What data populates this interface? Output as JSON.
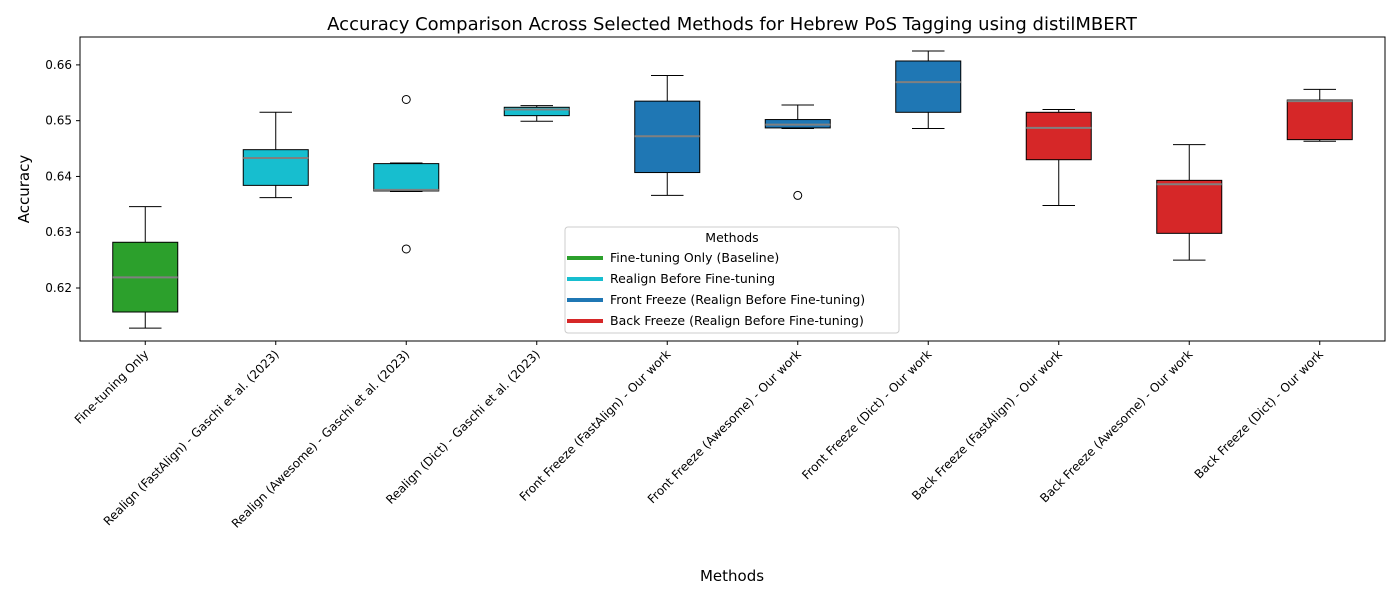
{
  "chart_data": {
    "type": "box",
    "title": "Accuracy Comparison Across Selected Methods for Hebrew PoS Tagging using distilMBERT",
    "xlabel": "Methods",
    "ylabel": "Accuracy",
    "ylim": [
      0.6105,
      0.665
    ],
    "yticks": [
      0.62,
      0.63,
      0.64,
      0.65,
      0.66
    ],
    "ytick_labels": [
      "0.62",
      "0.63",
      "0.64",
      "0.65",
      "0.66"
    ],
    "grid": false,
    "median_color": "#808080",
    "categories": [
      "Fine-tuning Only",
      "Realign (FastAlign) - Gaschi et al. (2023)",
      "Realign (Awesome) - Gaschi et al. (2023)",
      "Realign (Dict) - Gaschi et al. (2023)",
      "Front Freeze (FastAlign) - Our work",
      "Front Freeze (Awesome) - Our work",
      "Front Freeze (Dict) - Our work",
      "Back Freeze (FastAlign) - Our work",
      "Back Freeze (Awesome) - Our work",
      "Back Freeze (Dict) - Our work"
    ],
    "boxes": [
      {
        "group": 0,
        "whisker_low": 0.6128,
        "q1": 0.6157,
        "median": 0.6219,
        "q3": 0.6282,
        "whisker_high": 0.6346,
        "outliers": []
      },
      {
        "group": 1,
        "whisker_low": 0.6362,
        "q1": 0.6384,
        "median": 0.6433,
        "q3": 0.6448,
        "whisker_high": 0.6515,
        "outliers": []
      },
      {
        "group": 1,
        "whisker_low": 0.6373,
        "q1": 0.6374,
        "median": 0.6376,
        "q3": 0.6423,
        "whisker_high": 0.6424,
        "outliers": [
          0.6538,
          0.627
        ]
      },
      {
        "group": 1,
        "whisker_low": 0.6499,
        "q1": 0.6509,
        "median": 0.652,
        "q3": 0.6524,
        "whisker_high": 0.6527,
        "outliers": []
      },
      {
        "group": 2,
        "whisker_low": 0.6366,
        "q1": 0.6407,
        "median": 0.6472,
        "q3": 0.6535,
        "whisker_high": 0.6581,
        "outliers": []
      },
      {
        "group": 2,
        "whisker_low": 0.6486,
        "q1": 0.6487,
        "median": 0.6493,
        "q3": 0.6502,
        "whisker_high": 0.6528,
        "outliers": [
          0.6366
        ]
      },
      {
        "group": 2,
        "whisker_low": 0.6486,
        "q1": 0.6515,
        "median": 0.6569,
        "q3": 0.6607,
        "whisker_high": 0.6625,
        "outliers": []
      },
      {
        "group": 3,
        "whisker_low": 0.6348,
        "q1": 0.643,
        "median": 0.6487,
        "q3": 0.6515,
        "whisker_high": 0.652,
        "outliers": []
      },
      {
        "group": 3,
        "whisker_low": 0.625,
        "q1": 0.6298,
        "median": 0.6386,
        "q3": 0.6393,
        "whisker_high": 0.6457,
        "outliers": []
      },
      {
        "group": 3,
        "whisker_low": 0.6463,
        "q1": 0.6466,
        "median": 0.6535,
        "q3": 0.6537,
        "whisker_high": 0.6556,
        "outliers": []
      }
    ],
    "legend": {
      "title": "Methods",
      "placement": "lower-center",
      "entries": [
        {
          "label": "Fine-tuning Only (Baseline)",
          "color": "#2ca02c"
        },
        {
          "label": "Realign Before Fine-tuning",
          "color": "#17becf"
        },
        {
          "label": "Front Freeze (Realign Before Fine-tuning)",
          "color": "#1f77b4"
        },
        {
          "label": "Back Freeze (Realign Before Fine-tuning)",
          "color": "#d62728"
        }
      ]
    }
  }
}
